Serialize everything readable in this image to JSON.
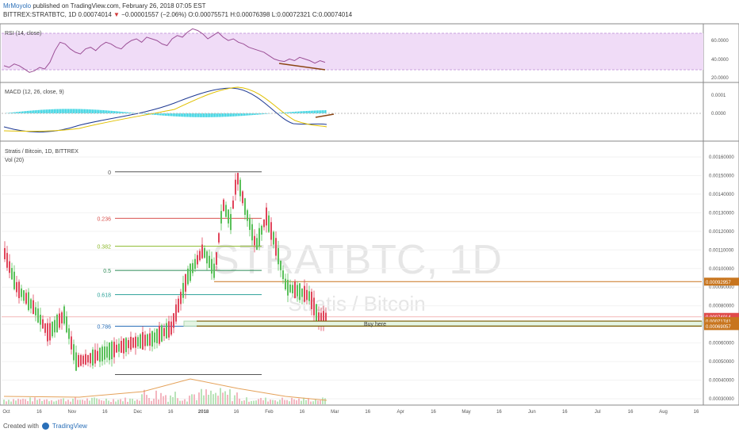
{
  "header": {
    "line1_user": "MrMoyolo",
    "line1_rest": " published on TradingView.com, February 26, 2018 07:05 EST",
    "line2_symbol": "BITTREX:STRATBTC, 1D ",
    "line2_price": "0.00074014",
    "line2_arrow": "▼",
    "line2_change": " −0.00001557 (−2.06%) ",
    "line2_o": "O:0.00075571",
    "line2_h": " H:0.00076398",
    "line2_l": " L:0.00072321",
    "line2_c": " C:0.00074014"
  },
  "rsi": {
    "label": "RSI (14, close)",
    "ticks": [
      "60.0000",
      "40.0000",
      "20.0000"
    ],
    "values": [
      30,
      28,
      32,
      30,
      26,
      22,
      24,
      28,
      26,
      34,
      48,
      58,
      56,
      50,
      46,
      44,
      50,
      52,
      48,
      54,
      58,
      56,
      52,
      50,
      56,
      60,
      62,
      58,
      64,
      62,
      60,
      56,
      54,
      62,
      66,
      64,
      70,
      74,
      72,
      68,
      62,
      66,
      70,
      64,
      60,
      62,
      58,
      56,
      52,
      50,
      48,
      46,
      42,
      38,
      36,
      35,
      38,
      36,
      40,
      38,
      36,
      33,
      36,
      34
    ],
    "divergence_colour": "#8b4513"
  },
  "macd": {
    "label": "MACD (12, 26, close, 9)",
    "ticks": [
      "0.0001",
      "0.0000"
    ],
    "macd_colour": "#1f3a93",
    "signal_colour": "#e0c000",
    "hist_colour": "#2fd2e0"
  },
  "main": {
    "label1": "Stratis / Bitcoin, 1D, BITTREX",
    "label2": "Vol (20)",
    "watermark1": "STRATBTC, 1D",
    "watermark2": "Stratis / Bitcoin",
    "price_ticks": [
      "0.00160000",
      "0.00150000",
      "0.00140000",
      "0.00130000",
      "0.00120000",
      "0.00110000",
      "0.00100000",
      "0.00090000",
      "0.00080000",
      "0.00070000",
      "0.00060000",
      "0.00050000",
      "0.00040000",
      "0.00030000"
    ],
    "tick_values": [
      0.0016,
      0.0015,
      0.0014,
      0.0013,
      0.0012,
      0.0011,
      0.001,
      0.0009,
      0.0008,
      0.0007,
      0.0006,
      0.0005,
      0.0004,
      0.0003
    ],
    "fib_levels": [
      {
        "label": "0",
        "price": 0.00152,
        "colour": "#555555"
      },
      {
        "label": "0.236",
        "price": 0.00127,
        "colour": "#d9534f"
      },
      {
        "label": "0.382",
        "price": 0.00112,
        "colour": "#8cb92b"
      },
      {
        "label": "0.5",
        "price": 0.00099,
        "colour": "#2e8b57"
      },
      {
        "label": "0.618",
        "price": 0.00086,
        "colour": "#2aa198"
      },
      {
        "label": "0.786",
        "price": 0.00069,
        "colour": "#2a6fb8"
      },
      {
        "label": "",
        "price": 0.00043,
        "colour": "#555555"
      }
    ],
    "buy_zone": {
      "label": "Buy here",
      "top": 0.00071741,
      "bottom": 0.00069057
    },
    "price_tags": [
      {
        "text": "0.00092957",
        "price": 0.00092957,
        "colour": "#c8751e"
      },
      {
        "text": "0.00074014",
        "price": 0.00074014,
        "colour": "#e04b4b"
      },
      {
        "text": "0.00071741",
        "price": 0.00071741,
        "colour": "#c8751e"
      },
      {
        "text": "0.00069057",
        "price": 0.00069057,
        "colour": "#c8751e"
      }
    ],
    "up_colour": "#59c059",
    "down_colour": "#e0455a"
  },
  "x_axis": [
    "Oct",
    "16",
    "Nov",
    "16",
    "Dec",
    "16",
    "2018",
    "16",
    "Feb",
    "16",
    "Mar",
    "16",
    "Apr",
    "16",
    "May",
    "16",
    "Jun",
    "16",
    "Jul",
    "16",
    "Aug",
    "16"
  ],
  "footer": {
    "created": "Created with",
    "brand": "TradingView"
  }
}
